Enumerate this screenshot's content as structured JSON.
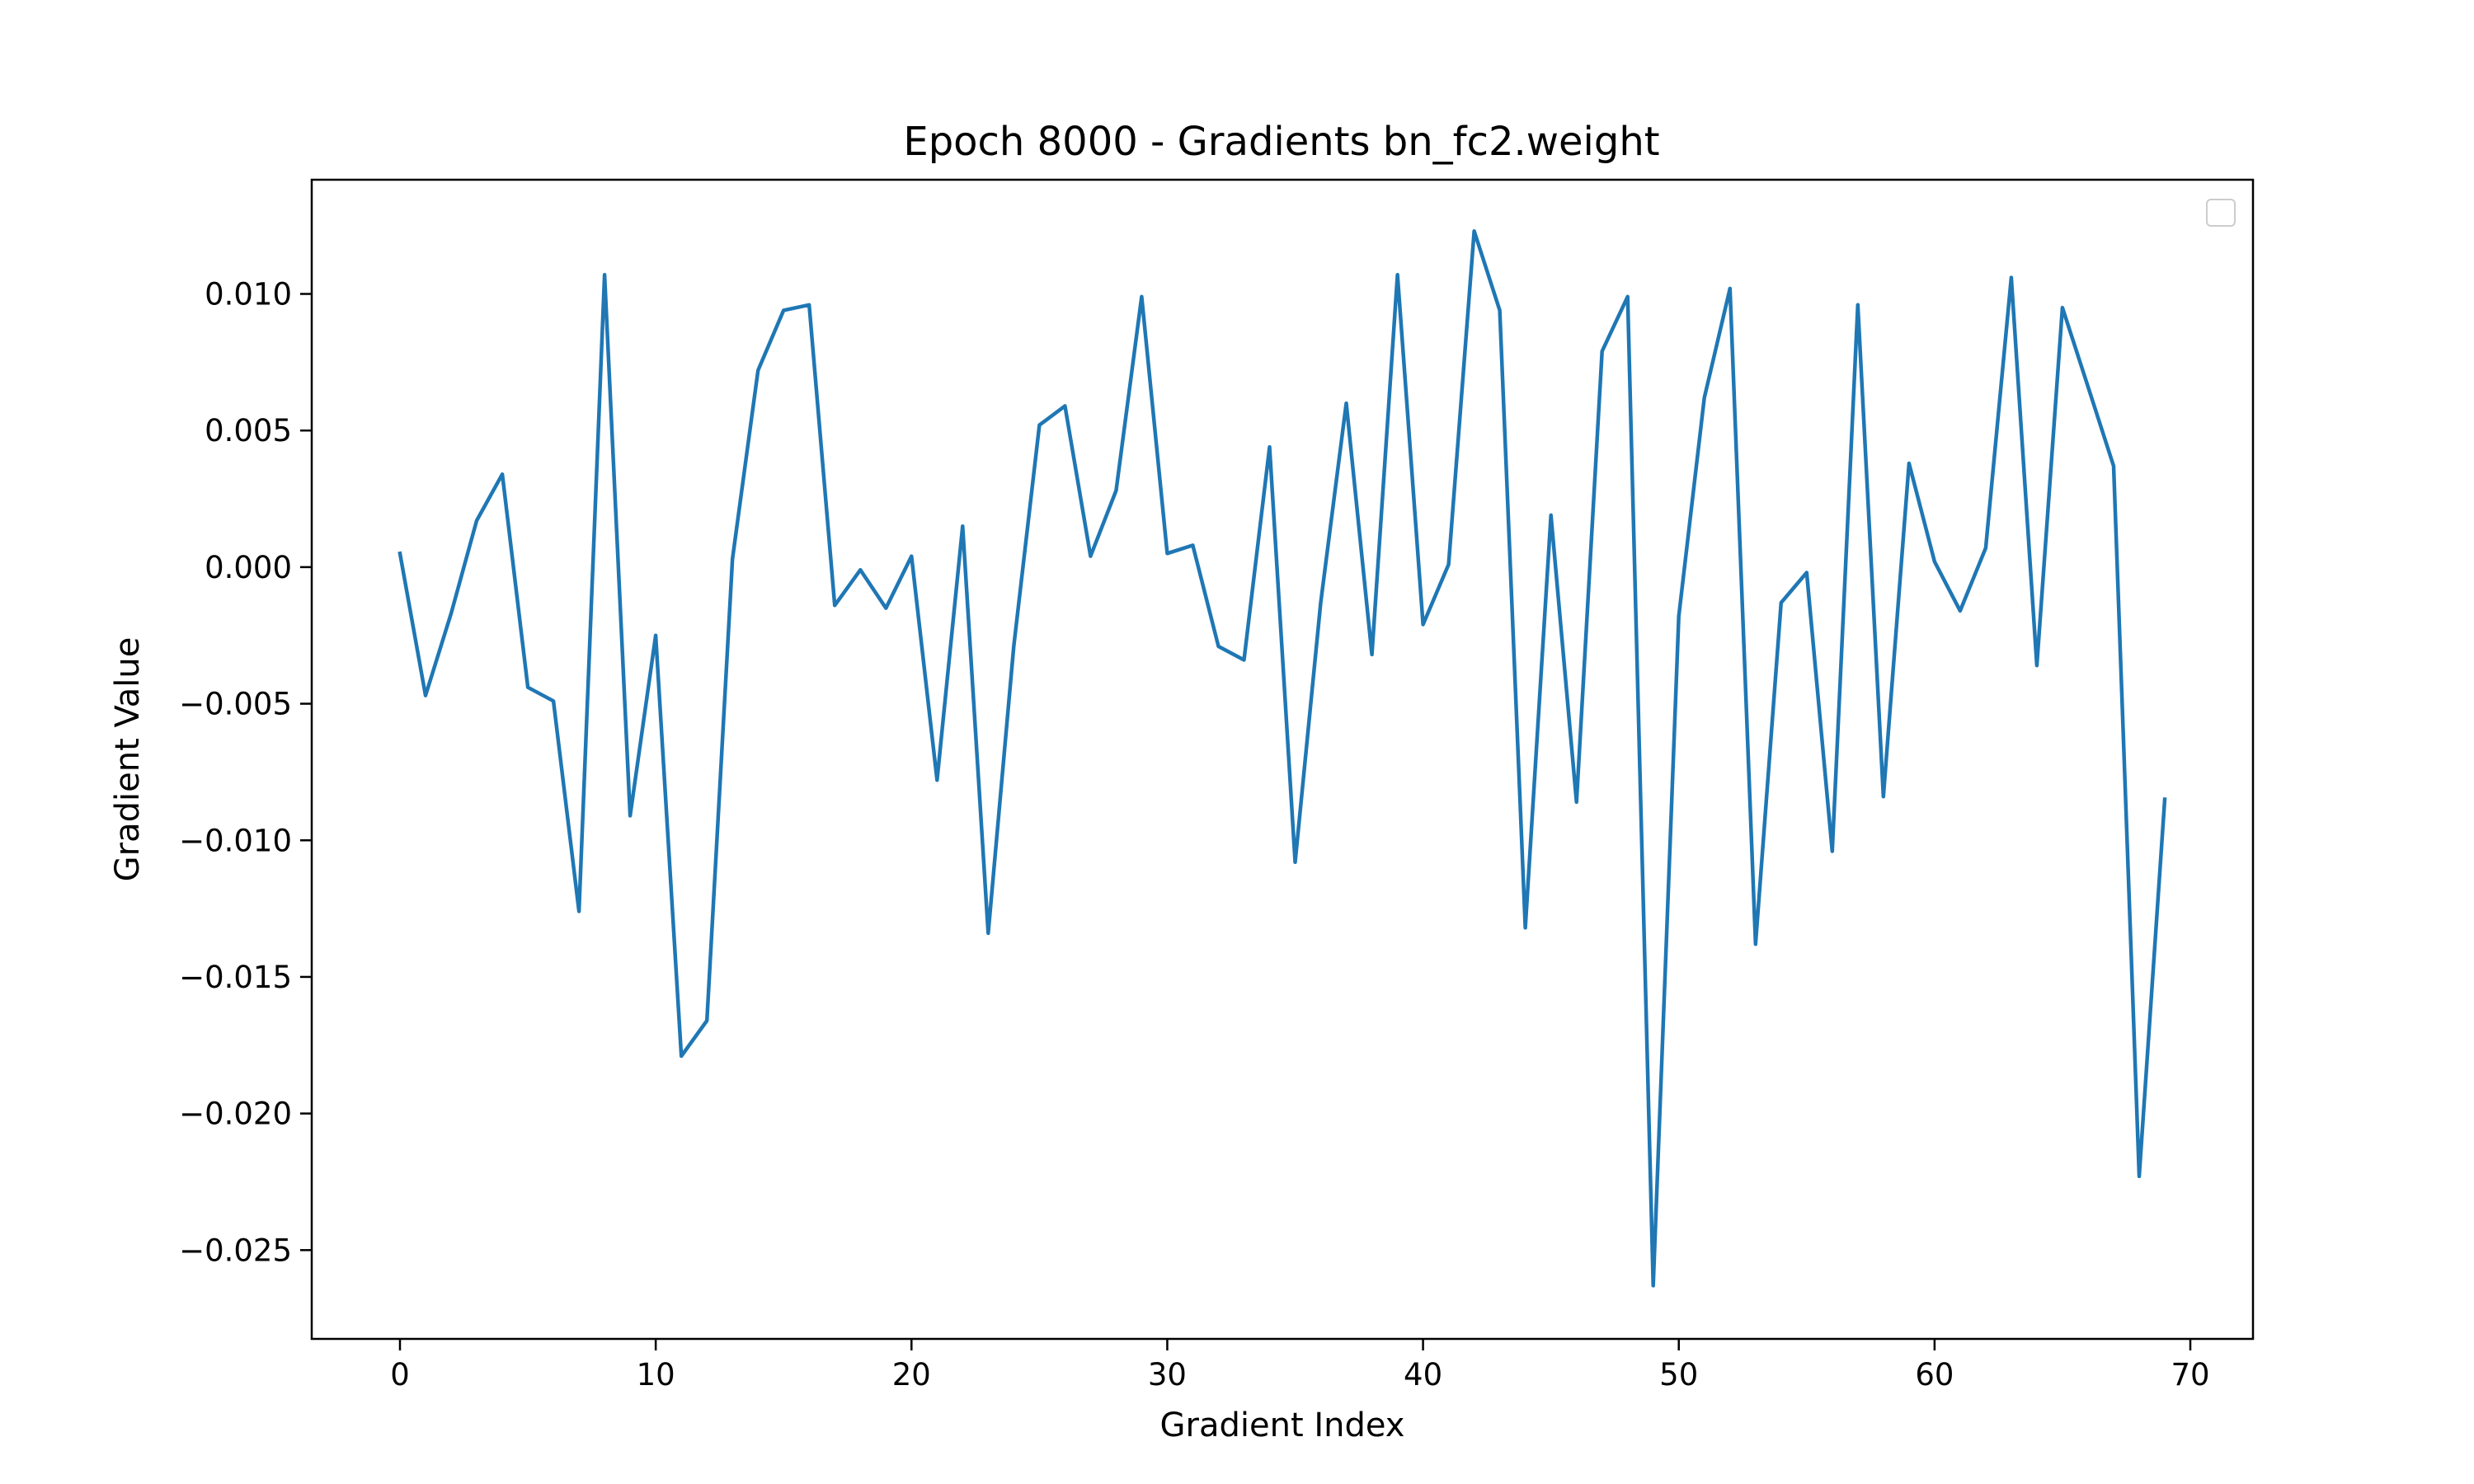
{
  "chart_data": {
    "type": "line",
    "title": "Epoch 8000 - Gradients bn_fc2.weight",
    "xlabel": "Gradient Index",
    "ylabel": "Gradient Value",
    "xlim": [
      -3.45,
      72.45
    ],
    "ylim": [
      -0.02825,
      0.01418
    ],
    "x_ticks": [
      0,
      10,
      20,
      30,
      40,
      50,
      60,
      70
    ],
    "x_tick_labels": [
      "0",
      "10",
      "20",
      "30",
      "40",
      "50",
      "60",
      "70"
    ],
    "y_ticks": [
      0.01,
      0.005,
      0.0,
      -0.005,
      -0.01,
      -0.015,
      -0.02,
      -0.025
    ],
    "y_tick_labels": [
      "0.010",
      "0.005",
      "0.000",
      "−0.005",
      "−0.010",
      "−0.015",
      "−0.020",
      "−0.025"
    ],
    "grid": false,
    "legend": "top-right (empty)",
    "series": [
      {
        "color": "#1f77b4",
        "x": [
          0,
          1,
          2,
          3,
          4,
          5,
          6,
          7,
          8,
          9,
          10,
          11,
          12,
          13,
          14,
          15,
          16,
          17,
          18,
          19,
          20,
          21,
          22,
          23,
          24,
          25,
          26,
          27,
          28,
          29,
          30,
          31,
          32,
          33,
          34,
          35,
          36,
          37,
          38,
          39,
          40,
          41,
          42,
          43,
          44,
          45,
          46,
          47,
          48,
          49,
          50,
          51,
          52,
          53,
          54,
          55,
          56,
          57,
          58,
          59,
          60,
          61,
          62,
          63,
          64,
          65,
          66,
          67,
          68,
          69
        ],
        "values": [
          0.0005,
          -0.0047,
          -0.0017,
          0.0017,
          0.0034,
          -0.0044,
          -0.0049,
          -0.0126,
          0.0107,
          -0.0091,
          -0.0025,
          -0.0179,
          -0.0166,
          0.0003,
          0.0072,
          0.0094,
          0.0096,
          -0.0014,
          -0.0001,
          -0.0015,
          0.0004,
          -0.0078,
          0.0015,
          -0.0134,
          -0.0029,
          0.0052,
          0.0059,
          0.0004,
          0.0028,
          0.0099,
          0.0005,
          0.0008,
          -0.0029,
          -0.0034,
          0.0044,
          -0.0108,
          -0.0013,
          0.006,
          -0.0032,
          0.0107,
          -0.0021,
          0.0001,
          0.0123,
          0.0094,
          -0.0132,
          0.0019,
          -0.0086,
          0.0079,
          0.0099,
          -0.0263,
          -0.0018,
          0.0062,
          0.0102,
          -0.0138,
          -0.0013,
          -0.0002,
          -0.0104,
          0.0096,
          -0.0084,
          0.0038,
          0.0002,
          -0.0016,
          0.0007,
          0.0106,
          -0.0036,
          0.0095,
          0.0066,
          0.0037,
          -0.0223,
          -0.0085
        ]
      }
    ]
  }
}
